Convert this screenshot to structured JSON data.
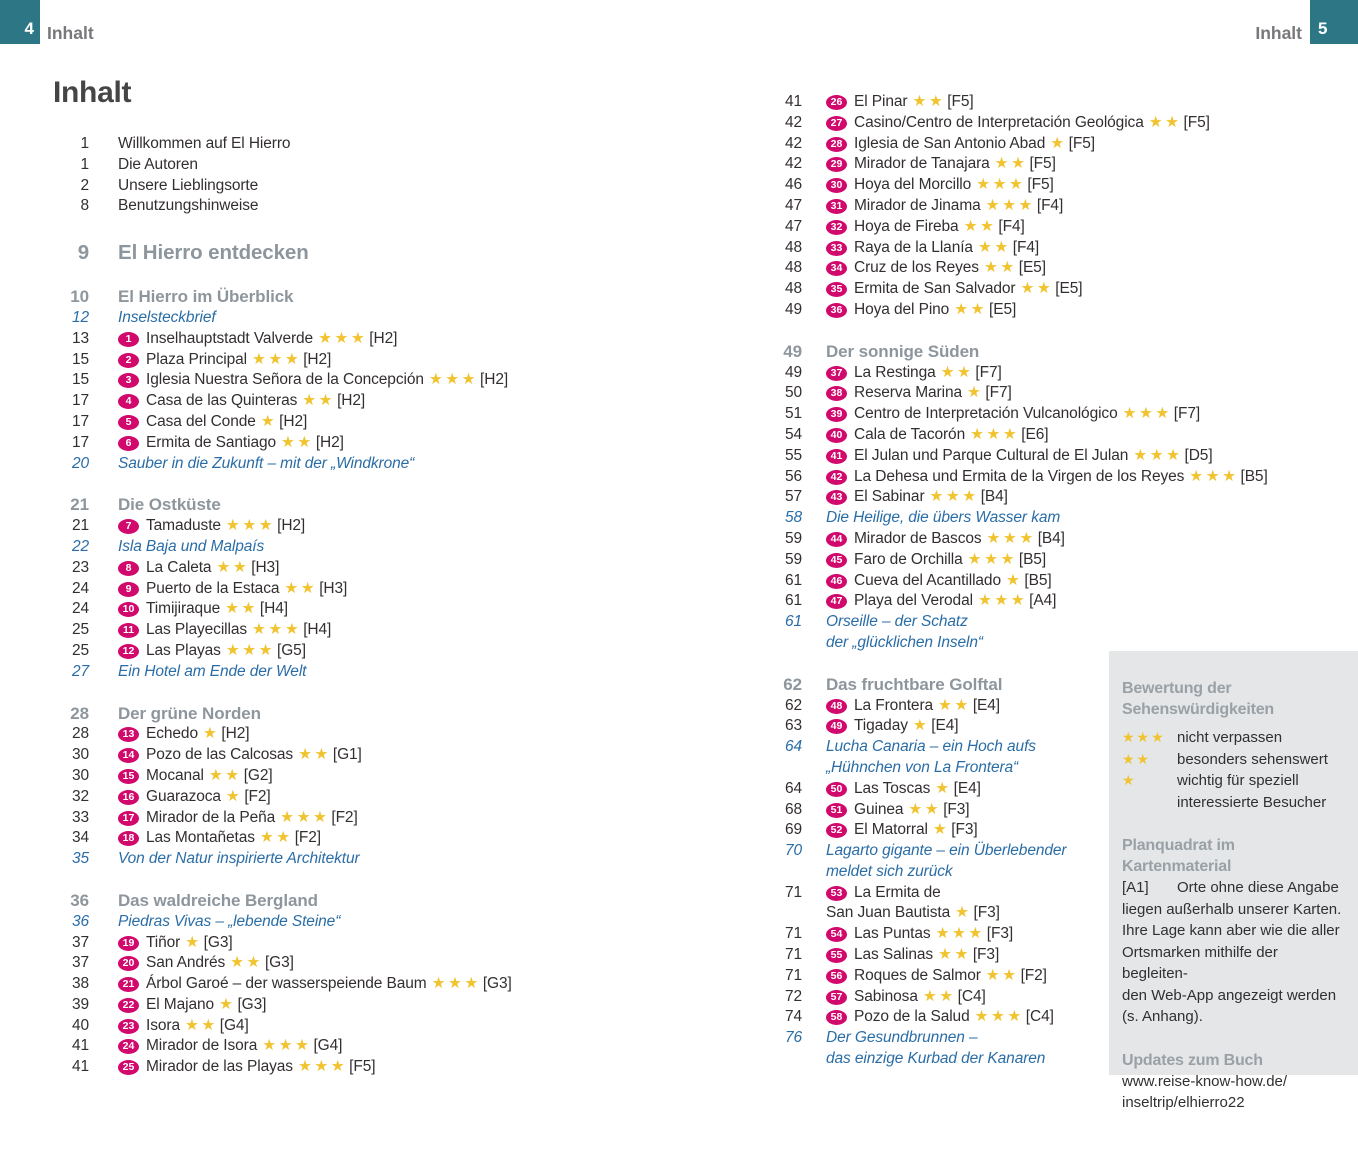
{
  "colors": {
    "page_bg": "#ffffff",
    "teal": "#2d7686",
    "header_label_gray": "#77787b",
    "text_dark": "#332f30",
    "heading_gray": "#8e969d",
    "feature_blue": "#2a6da6",
    "badge_pink": "#d2096d",
    "star_gold": "#f0c32f",
    "sidebar_bg": "#e4e6e7",
    "sidebar_heading_gray": "#9aa1a6"
  },
  "header": {
    "left_page": "4",
    "left_label": "Inhalt",
    "right_label": "Inhalt",
    "right_page": "5"
  },
  "title": "Inhalt",
  "left_column": {
    "rows": [
      {
        "kind": "intro",
        "page": "1",
        "title": "Willkommen auf El Hierro"
      },
      {
        "kind": "intro",
        "page": "1",
        "title": "Die Autoren"
      },
      {
        "kind": "intro",
        "page": "2",
        "title": "Unsere Lieblingsorte"
      },
      {
        "kind": "intro",
        "page": "8",
        "title": "Benutzungshinweise"
      },
      {
        "kind": "chapter",
        "page": "9",
        "title": "El Hierro entdecken"
      },
      {
        "kind": "section",
        "page": "10",
        "title": "El Hierro im Überblick"
      },
      {
        "kind": "feature",
        "page": "12",
        "title": "Inselsteckbrief"
      },
      {
        "kind": "poi",
        "page": "13",
        "num": "1",
        "title": "Inselhauptstadt Valverde",
        "stars": "★★★",
        "grid": "[H2]"
      },
      {
        "kind": "poi",
        "page": "15",
        "num": "2",
        "title": "Plaza Principal",
        "stars": "★★★",
        "grid": "[H2]"
      },
      {
        "kind": "poi",
        "page": "15",
        "num": "3",
        "title": "Iglesia Nuestra Señora de la Concepción",
        "stars": "★★★",
        "grid": "[H2]"
      },
      {
        "kind": "poi",
        "page": "17",
        "num": "4",
        "title": "Casa de las Quinteras",
        "stars": "★★",
        "grid": "[H2]"
      },
      {
        "kind": "poi",
        "page": "17",
        "num": "5",
        "title": "Casa del Conde",
        "stars": "★",
        "grid": "[H2]"
      },
      {
        "kind": "poi",
        "page": "17",
        "num": "6",
        "title": "Ermita de Santiago",
        "stars": "★★",
        "grid": "[H2]"
      },
      {
        "kind": "feature",
        "page": "20",
        "title": "Sauber in die Zukunft – mit der „Windkrone“"
      },
      {
        "kind": "section",
        "page": "21",
        "title": "Die Ostküste"
      },
      {
        "kind": "poi",
        "page": "21",
        "num": "7",
        "title": "Tamaduste",
        "stars": "★★★",
        "grid": "[H2]"
      },
      {
        "kind": "feature",
        "page": "22",
        "title": "Isla Baja und Malpaís"
      },
      {
        "kind": "poi",
        "page": "23",
        "num": "8",
        "title": "La Caleta",
        "stars": "★★",
        "grid": "[H3]"
      },
      {
        "kind": "poi",
        "page": "24",
        "num": "9",
        "title": "Puerto de la Estaca",
        "stars": "★★",
        "grid": "[H3]"
      },
      {
        "kind": "poi",
        "page": "24",
        "num": "10",
        "title": "Timijiraque",
        "stars": "★★",
        "grid": "[H4]"
      },
      {
        "kind": "poi",
        "page": "25",
        "num": "11",
        "title": "Las Playecillas",
        "stars": "★★★",
        "grid": "[H4]"
      },
      {
        "kind": "poi",
        "page": "25",
        "num": "12",
        "title": "Las Playas",
        "stars": "★★★",
        "grid": "[G5]"
      },
      {
        "kind": "feature",
        "page": "27",
        "title": "Ein Hotel am Ende der Welt"
      },
      {
        "kind": "section",
        "page": "28",
        "title": "Der grüne Norden"
      },
      {
        "kind": "poi",
        "page": "28",
        "num": "13",
        "title": "Echedo",
        "stars": "★",
        "grid": "[H2]"
      },
      {
        "kind": "poi",
        "page": "30",
        "num": "14",
        "title": "Pozo de las Calcosas",
        "stars": "★★",
        "grid": "[G1]"
      },
      {
        "kind": "poi",
        "page": "30",
        "num": "15",
        "title": "Mocanal",
        "stars": "★★",
        "grid": "[G2]"
      },
      {
        "kind": "poi",
        "page": "32",
        "num": "16",
        "title": "Guarazoca",
        "stars": "★",
        "grid": "[F2]"
      },
      {
        "kind": "poi",
        "page": "33",
        "num": "17",
        "title": "Mirador de la Peña",
        "stars": "★★★",
        "grid": "[F2]"
      },
      {
        "kind": "poi",
        "page": "34",
        "num": "18",
        "title": "Las Montañetas",
        "stars": "★★",
        "grid": "[F2]"
      },
      {
        "kind": "feature",
        "page": "35",
        "title": "Von der Natur inspirierte Architektur"
      },
      {
        "kind": "section",
        "page": "36",
        "title": "Das waldreiche Bergland"
      },
      {
        "kind": "feature",
        "page": "36",
        "title": "Piedras Vivas – „lebende Steine“"
      },
      {
        "kind": "poi",
        "page": "37",
        "num": "19",
        "title": "Tiñor",
        "stars": "★",
        "grid": "[G3]"
      },
      {
        "kind": "poi",
        "page": "37",
        "num": "20",
        "title": "San Andrés",
        "stars": "★★",
        "grid": "[G3]"
      },
      {
        "kind": "poi",
        "page": "38",
        "num": "21",
        "title": "Árbol Garoé – der wasserspeiende Baum",
        "stars": "★★★",
        "grid": "[G3]"
      },
      {
        "kind": "poi",
        "page": "39",
        "num": "22",
        "title": "El Majano",
        "stars": "★",
        "grid": "[G3]"
      },
      {
        "kind": "poi",
        "page": "40",
        "num": "23",
        "title": "Isora",
        "stars": "★★",
        "grid": "[G4]"
      },
      {
        "kind": "poi",
        "page": "41",
        "num": "24",
        "title": "Mirador de Isora",
        "stars": "★★★",
        "grid": "[G4]"
      },
      {
        "kind": "poi",
        "page": "41",
        "num": "25",
        "title": "Mirador de las Playas",
        "stars": "★★★",
        "grid": "[F5]"
      }
    ]
  },
  "right_column": {
    "rows": [
      {
        "kind": "poi",
        "page": "41",
        "num": "26",
        "title": "El Pinar",
        "stars": "★★",
        "grid": "[F5]"
      },
      {
        "kind": "poi",
        "page": "42",
        "num": "27",
        "title": "Casino/Centro de Interpretación Geológica",
        "stars": "★★",
        "grid": "[F5]"
      },
      {
        "kind": "poi",
        "page": "42",
        "num": "28",
        "title": "Iglesia de San Antonio Abad",
        "stars": "★",
        "grid": "[F5]"
      },
      {
        "kind": "poi",
        "page": "42",
        "num": "29",
        "title": "Mirador de Tanajara",
        "stars": "★★",
        "grid": "[F5]"
      },
      {
        "kind": "poi",
        "page": "46",
        "num": "30",
        "title": "Hoya del Morcillo",
        "stars": "★★★",
        "grid": "[F5]"
      },
      {
        "kind": "poi",
        "page": "47",
        "num": "31",
        "title": "Mirador de Jinama",
        "stars": "★★★",
        "grid": "[F4]"
      },
      {
        "kind": "poi",
        "page": "47",
        "num": "32",
        "title": "Hoya de Fireba",
        "stars": "★★",
        "grid": "[F4]"
      },
      {
        "kind": "poi",
        "page": "48",
        "num": "33",
        "title": "Raya de la Llanía",
        "stars": "★★",
        "grid": "[F4]"
      },
      {
        "kind": "poi",
        "page": "48",
        "num": "34",
        "title": "Cruz de los Reyes",
        "stars": "★★",
        "grid": "[E5]"
      },
      {
        "kind": "poi",
        "page": "48",
        "num": "35",
        "title": "Ermita de San Salvador",
        "stars": "★★",
        "grid": "[E5]"
      },
      {
        "kind": "poi",
        "page": "49",
        "num": "36",
        "title": "Hoya del Pino",
        "stars": "★★",
        "grid": "[E5]"
      },
      {
        "kind": "section",
        "page": "49",
        "title": "Der sonnige Süden"
      },
      {
        "kind": "poi",
        "page": "49",
        "num": "37",
        "title": "La Restinga",
        "stars": "★★",
        "grid": "[F7]"
      },
      {
        "kind": "poi",
        "page": "50",
        "num": "38",
        "title": "Reserva Marina",
        "stars": "★",
        "grid": "[F7]"
      },
      {
        "kind": "poi",
        "page": "51",
        "num": "39",
        "title": "Centro de Interpretación Vulcanológico",
        "stars": "★★★",
        "grid": "[F7]"
      },
      {
        "kind": "poi",
        "page": "54",
        "num": "40",
        "title": "Cala de Tacorón",
        "stars": "★★★",
        "grid": "[E6]"
      },
      {
        "kind": "poi",
        "page": "55",
        "num": "41",
        "title": "El Julan und Parque Cultural de El Julan",
        "stars": "★★★",
        "grid": "[D5]"
      },
      {
        "kind": "poi",
        "page": "56",
        "num": "42",
        "title": "La Dehesa und Ermita de la Virgen de los Reyes",
        "stars": "★★★",
        "grid": "[B5]"
      },
      {
        "kind": "poi",
        "page": "57",
        "num": "43",
        "title": "El Sabinar",
        "stars": "★★★",
        "grid": "[B4]"
      },
      {
        "kind": "feature",
        "page": "58",
        "title": "Die Heilige, die übers Wasser kam"
      },
      {
        "kind": "poi",
        "page": "59",
        "num": "44",
        "title": "Mirador de Bascos",
        "stars": "★★★",
        "grid": "[B4]"
      },
      {
        "kind": "poi",
        "page": "59",
        "num": "45",
        "title": "Faro de Orchilla",
        "stars": "★★★",
        "grid": "[B5]"
      },
      {
        "kind": "poi",
        "page": "61",
        "num": "46",
        "title": "Cueva del Acantillado",
        "stars": "★",
        "grid": "[B5]"
      },
      {
        "kind": "poi",
        "page": "61",
        "num": "47",
        "title": "Playa del Verodal",
        "stars": "★★★",
        "grid": "[A4]"
      },
      {
        "kind": "feature",
        "page": "61",
        "title": "Orseille – der Schatz\nder „glücklichen Inseln“"
      },
      {
        "kind": "section",
        "page": "62",
        "title": "Das fruchtbare Golftal"
      },
      {
        "kind": "poi",
        "page": "62",
        "num": "48",
        "title": "La Frontera",
        "stars": "★★",
        "grid": "[E4]"
      },
      {
        "kind": "poi",
        "page": "63",
        "num": "49",
        "title": "Tigaday",
        "stars": "★",
        "grid": "[E4]"
      },
      {
        "kind": "feature",
        "page": "64",
        "title": "Lucha Canaria – ein Hoch aufs\n„Hühnchen von La Frontera“"
      },
      {
        "kind": "poi",
        "page": "64",
        "num": "50",
        "title": "Las Toscas",
        "stars": "★",
        "grid": "[E4]"
      },
      {
        "kind": "poi",
        "page": "68",
        "num": "51",
        "title": "Guinea",
        "stars": "★★",
        "grid": "[F3]"
      },
      {
        "kind": "poi",
        "page": "69",
        "num": "52",
        "title": "El Matorral",
        "stars": "★",
        "grid": "[F3]"
      },
      {
        "kind": "feature",
        "page": "70",
        "title": "Lagarto gigante – ein Überlebender\nmeldet sich zurück"
      },
      {
        "kind": "poi",
        "page": "71",
        "num": "53",
        "title": "La Ermita de\nSan Juan Bautista",
        "stars": "★",
        "grid": "[F3]"
      },
      {
        "kind": "poi",
        "page": "71",
        "num": "54",
        "title": "Las Puntas",
        "stars": "★★★",
        "grid": "[F3]"
      },
      {
        "kind": "poi",
        "page": "71",
        "num": "55",
        "title": "Las Salinas",
        "stars": "★★",
        "grid": "[F3]"
      },
      {
        "kind": "poi",
        "page": "71",
        "num": "56",
        "title": "Roques de Salmor",
        "stars": "★★",
        "grid": "[F2]"
      },
      {
        "kind": "poi",
        "page": "72",
        "num": "57",
        "title": "Sabinosa",
        "stars": "★★",
        "grid": "[C4]"
      },
      {
        "kind": "poi",
        "page": "74",
        "num": "58",
        "title": "Pozo de la Salud",
        "stars": "★★★",
        "grid": "[C4]"
      },
      {
        "kind": "feature",
        "page": "76",
        "title": "Der Gesundbrunnen –\ndas einzige Kurbad der Kanaren"
      }
    ]
  },
  "sidebar": {
    "rating_heading": "Bewertung der\nSehenswürdigkeiten",
    "legend": [
      {
        "stars": "★★★",
        "label": "nicht verpassen"
      },
      {
        "stars": "★★",
        "label": "besonders sehenswert"
      },
      {
        "stars": "★",
        "label": "wichtig für speziell\ninteressierte Besucher"
      }
    ],
    "grid_heading": "Planquadrat im Kartenmaterial",
    "grid_ref": "[A1]",
    "grid_line1": "Orte ohne diese Angabe",
    "grid_rest": "liegen außerhalb unserer Karten.\nIhre Lage kann aber wie die aller\nOrtsmarken mithilfe der begleiten-\nden Web-App angezeigt werden\n(s. Anhang).",
    "updates_heading": "Updates zum Buch",
    "updates_url": "www.reise-know-how.de/\ninseltrip/elhierro22"
  }
}
